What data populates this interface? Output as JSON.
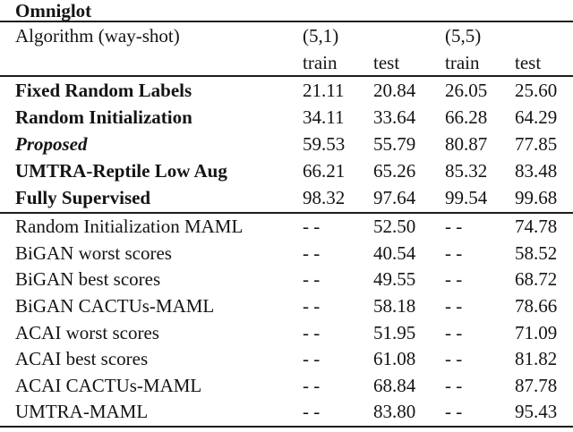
{
  "colors": {
    "text": "#141414",
    "rule": "#1c1c1c",
    "background": "#ffffff"
  },
  "table": {
    "title": "Omniglot",
    "header": {
      "algorithm_label": "Algorithm (way-shot)",
      "group1": "(5,1)",
      "group2": "(5,5)",
      "subheaders": [
        "train",
        "test",
        "train",
        "test"
      ]
    },
    "sections": [
      {
        "rows": [
          {
            "label": "Fixed Random Labels",
            "style": "bold",
            "values": [
              "21.11",
              "20.84",
              "26.05",
              "25.60"
            ]
          },
          {
            "label": "Random Initialization",
            "style": "bold",
            "values": [
              "34.11",
              "33.64",
              "66.28",
              "64.29"
            ]
          },
          {
            "label": "Proposed",
            "style": "bold-italic",
            "values": [
              "59.53",
              "55.79",
              "80.87",
              "77.85"
            ]
          },
          {
            "label": "UMTRA-Reptile Low Aug",
            "style": "bold",
            "values": [
              "66.21",
              "65.26",
              "85.32",
              "83.48"
            ]
          },
          {
            "label": "Fully Supervised",
            "style": "bold",
            "values": [
              "98.32",
              "97.64",
              "99.54",
              "99.68"
            ]
          }
        ]
      },
      {
        "rows": [
          {
            "label": "Random Initialization MAML",
            "style": "regular",
            "values": [
              "- -",
              "52.50",
              "- -",
              "74.78"
            ]
          },
          {
            "label": "BiGAN worst scores",
            "style": "regular",
            "values": [
              "- -",
              "40.54",
              "- -",
              "58.52"
            ]
          },
          {
            "label": "BiGAN best scores",
            "style": "regular",
            "values": [
              "- -",
              "49.55",
              "- -",
              "68.72"
            ]
          },
          {
            "label": "BiGAN CACTUs-MAML",
            "style": "regular",
            "values": [
              "- -",
              "58.18",
              "- -",
              "78.66"
            ]
          },
          {
            "label": "ACAI worst scores",
            "style": "regular",
            "values": [
              "- -",
              "51.95",
              "- -",
              "71.09"
            ]
          },
          {
            "label": "ACAI best scores",
            "style": "regular",
            "values": [
              "- -",
              "61.08",
              "- -",
              "81.82"
            ]
          },
          {
            "label": "ACAI CACTUs-MAML",
            "style": "regular",
            "values": [
              "- -",
              "68.84",
              "- -",
              "87.78"
            ]
          },
          {
            "label": "UMTRA-MAML",
            "style": "regular",
            "values": [
              "- -",
              "83.80",
              "- -",
              "95.43"
            ]
          }
        ]
      }
    ]
  }
}
